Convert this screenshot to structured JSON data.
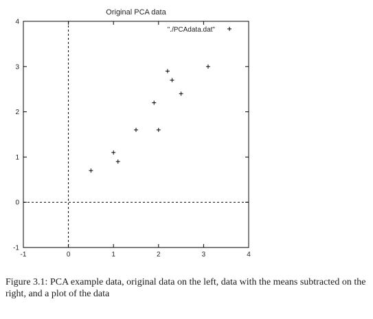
{
  "chart_data": {
    "type": "scatter",
    "title": "Original PCA data",
    "xlabel": "",
    "ylabel": "",
    "xlim": [
      -1,
      4
    ],
    "ylim": [
      -1,
      4
    ],
    "xticks": [
      "-1",
      "0",
      "1",
      "2",
      "3",
      "4"
    ],
    "yticks": [
      "-1",
      "0",
      "1",
      "2",
      "3",
      "4"
    ],
    "grid": false,
    "zero_lines": true,
    "legend": {
      "position": "top-right",
      "entries": [
        "\"./PCAdata.dat\""
      ]
    },
    "series": [
      {
        "name": "\"./PCAdata.dat\"",
        "marker": "+",
        "x": [
          2.5,
          0.5,
          2.2,
          1.9,
          3.1,
          2.3,
          2.0,
          1.0,
          1.5,
          1.1
        ],
        "y": [
          2.4,
          0.7,
          2.9,
          2.2,
          3.0,
          2.7,
          1.6,
          1.1,
          1.6,
          0.9
        ]
      }
    ]
  },
  "caption": "Figure 3.1: PCA example data, original data on the left, data with the means subtracted on the right, and a plot of the data"
}
